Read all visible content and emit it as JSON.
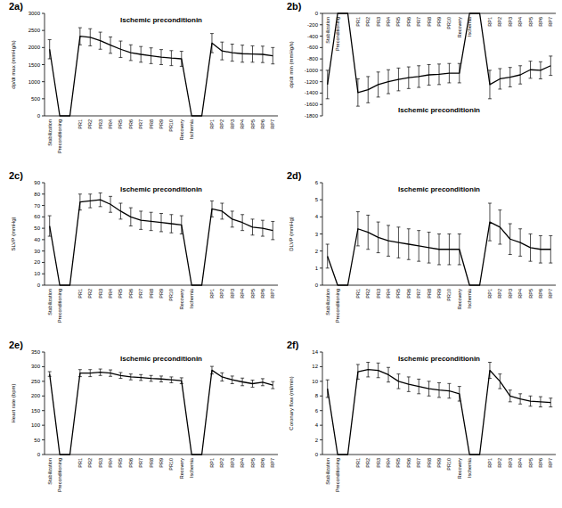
{
  "chart_data": [
    {
      "type": "line",
      "annotation": "2a)",
      "title": "Ischemic preconditionin",
      "y_label": "dp/dt max (mmHg/s)",
      "color": "#000000",
      "categories": [
        "Stabilization",
        "Preconditioning",
        null,
        "PR1",
        "PR2",
        "PR3",
        "PR4",
        "PR5",
        "PR6",
        "PR7",
        "PR8",
        "PR9",
        "PR10",
        "Recovery",
        "Ischemia",
        null,
        "RP1",
        "RP2",
        "RP3",
        "RP4",
        "RP5",
        "RP6",
        "RP7"
      ],
      "values": [
        1950,
        0,
        0,
        2330,
        2300,
        2200,
        2070,
        1950,
        1850,
        1800,
        1760,
        1720,
        1690,
        1670,
        0,
        0,
        2130,
        1900,
        1850,
        1820,
        1810,
        1800,
        1760
      ],
      "errors": [
        280,
        null,
        null,
        250,
        250,
        250,
        240,
        240,
        230,
        230,
        230,
        220,
        220,
        220,
        null,
        null,
        280,
        260,
        250,
        250,
        240,
        240,
        240
      ],
      "ylim": [
        0,
        3000
      ],
      "yticks": [
        0,
        500,
        1000,
        1500,
        2000,
        2500,
        3000
      ]
    },
    {
      "type": "line",
      "annotation": "2b)",
      "title": "Ischemic preconditionin",
      "y_label": "dp/dt min (mmHg/s)",
      "color": "#000000",
      "categories": [
        "Stabilization",
        "Preconditioning",
        null,
        "PR1",
        "PR2",
        "PR3",
        "PR4",
        "PR5",
        "PR6",
        "PR7",
        "PR8",
        "PR9",
        "PR10",
        "Recovery",
        "Ischemia",
        null,
        "RP1",
        "RP2",
        "RP3",
        "RP4",
        "RP5",
        "RP6",
        "RP7"
      ],
      "values": [
        -1250,
        0,
        0,
        -1390,
        -1340,
        -1250,
        -1200,
        -1160,
        -1130,
        -1110,
        -1080,
        -1070,
        -1050,
        -1050,
        0,
        0,
        -1250,
        -1150,
        -1120,
        -1080,
        -990,
        -1000,
        -920
      ],
      "errors": [
        250,
        null,
        null,
        240,
        230,
        220,
        210,
        200,
        190,
        190,
        180,
        180,
        170,
        170,
        null,
        null,
        250,
        180,
        170,
        160,
        150,
        150,
        170
      ],
      "ylim": [
        -1800,
        0
      ],
      "yticks": [
        -1800,
        -1600,
        -1400,
        -1200,
        -1000,
        -800,
        -600,
        -400,
        -200,
        0
      ]
    },
    {
      "type": "line",
      "annotation": "2c)",
      "title": "Ischemic preconditionin",
      "y_label": "SLVP (mmHg)",
      "color": "#000000",
      "categories": [
        "Stabilization",
        "Preconditioning",
        null,
        "PR1",
        "PR2",
        "PR3",
        "PR4",
        "PR5",
        "PR6",
        "PR7",
        "PR8",
        "PR9",
        "PR10",
        "Recovery",
        "Ischemia",
        null,
        "RP1",
        "RP2",
        "RP3",
        "RP4",
        "RP5",
        "RP6",
        "RP7"
      ],
      "values": [
        52,
        0,
        0,
        73,
        74,
        75,
        71,
        65,
        60,
        57,
        56,
        55,
        54,
        53,
        0,
        0,
        67,
        65,
        58,
        55,
        51,
        50,
        48
      ],
      "errors": [
        9,
        null,
        null,
        7,
        6,
        6,
        7,
        7,
        8,
        8,
        8,
        8,
        8,
        8,
        null,
        null,
        7,
        7,
        7,
        7,
        7,
        7,
        8
      ],
      "ylim": [
        0,
        90
      ],
      "yticks": [
        0,
        10,
        20,
        30,
        40,
        50,
        60,
        70,
        80,
        90
      ]
    },
    {
      "type": "line",
      "annotation": "2d)",
      "title": "Ischemic preconditionin",
      "y_label": "DLVP (mmHg)",
      "color": "#000000",
      "categories": [
        "Stabilization",
        "Preconditioning",
        null,
        "PR1",
        "PR2",
        "PR3",
        "PR4",
        "PR5",
        "PR6",
        "PR7",
        "PR8",
        "PR9",
        "PR10",
        "Recovery",
        "Ischemia",
        null,
        "RP1",
        "RP2",
        "RP3",
        "RP4",
        "RP5",
        "RP6",
        "RP7"
      ],
      "values": [
        1.7,
        0,
        0,
        3.3,
        3.1,
        2.8,
        2.6,
        2.5,
        2.4,
        2.3,
        2.2,
        2.1,
        2.1,
        2.1,
        0,
        0,
        3.7,
        3.4,
        2.7,
        2.5,
        2.2,
        2.1,
        2.1
      ],
      "errors": [
        0.7,
        null,
        null,
        1.0,
        1.0,
        0.9,
        0.9,
        0.9,
        0.9,
        0.9,
        0.9,
        0.9,
        0.9,
        0.9,
        null,
        null,
        1.1,
        1.0,
        0.9,
        0.8,
        0.8,
        0.8,
        0.8
      ],
      "ylim": [
        0,
        6
      ],
      "yticks": [
        0,
        1,
        2,
        3,
        4,
        5,
        6
      ]
    },
    {
      "type": "line",
      "annotation": "2e)",
      "title": "Ischemic preconditionin",
      "y_label": "Heart rate (bpm)",
      "color": "#000000",
      "categories": [
        "Stabilization",
        "Preconditioning",
        null,
        "PR1",
        "PR2",
        "PR3",
        "PR4",
        "PR5",
        "PR6",
        "PR7",
        "PR8",
        "PR9",
        "PR10",
        "Recovery",
        "Ischemia",
        null,
        "RP1",
        "RP2",
        "RP3",
        "RP4",
        "RP5",
        "RP6",
        "RP7"
      ],
      "values": [
        275,
        0,
        0,
        278,
        278,
        281,
        278,
        270,
        265,
        263,
        260,
        258,
        255,
        252,
        0,
        0,
        288,
        265,
        255,
        248,
        242,
        247,
        237
      ],
      "errors": [
        8,
        null,
        null,
        12,
        12,
        11,
        11,
        10,
        10,
        10,
        10,
        10,
        10,
        10,
        null,
        null,
        13,
        14,
        13,
        13,
        12,
        12,
        12
      ],
      "ylim": [
        0,
        350
      ],
      "yticks": [
        0,
        50,
        100,
        150,
        200,
        250,
        300,
        350
      ]
    },
    {
      "type": "line",
      "annotation": "2f)",
      "title": "Ischemic preconditionin",
      "y_label": "Coronary flow (ml/min)",
      "color": "#000000",
      "categories": [
        "Stabilization",
        "Preconditioning",
        null,
        "PR1",
        "PR2",
        "PR3",
        "PR4",
        "PR5",
        "PR6",
        "PR7",
        "PR8",
        "PR9",
        "PR10",
        "Recovery",
        "Ischemia",
        null,
        "RP1",
        "RP2",
        "RP3",
        "RP4",
        "RP5",
        "RP6",
        "RP7"
      ],
      "values": [
        9.0,
        0,
        0,
        11.3,
        11.6,
        11.5,
        10.9,
        10.0,
        9.6,
        9.3,
        9.0,
        8.8,
        8.7,
        8.3,
        0,
        0,
        11.5,
        10.0,
        8.0,
        7.6,
        7.3,
        7.2,
        7.1
      ],
      "errors": [
        1.2,
        null,
        null,
        1.0,
        1.0,
        1.0,
        1.0,
        1.0,
        1.0,
        1.0,
        1.0,
        1.0,
        1.0,
        1.0,
        null,
        null,
        1.1,
        1.0,
        0.8,
        0.7,
        0.7,
        0.7,
        0.6
      ],
      "ylim": [
        0,
        14
      ],
      "yticks": [
        0,
        2,
        4,
        6,
        8,
        10,
        12,
        14
      ]
    }
  ]
}
